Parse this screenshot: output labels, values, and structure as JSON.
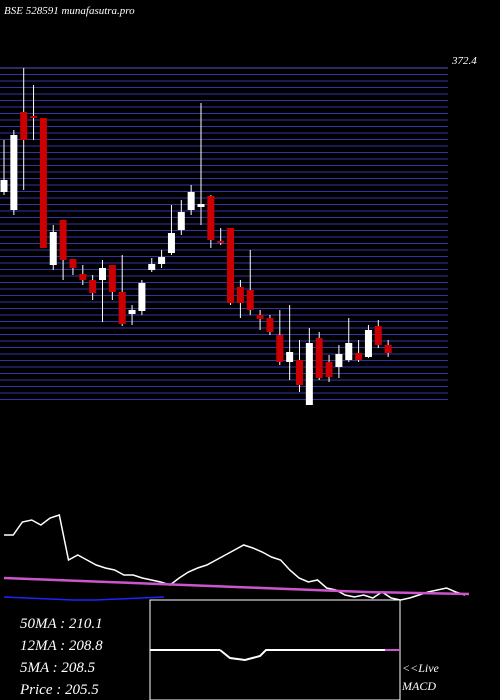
{
  "chart_data": {
    "type": "candlestick",
    "title": "BSE 528591 munafasutra.pro",
    "ylim": [
      170.2,
      372.4
    ],
    "yticks": [
      372.4
    ],
    "up_color": "#ffffff",
    "down_color": "#cc0000",
    "open": [
      298.0,
      287.2,
      346.0,
      343.6,
      342.4,
      254.2,
      281.2,
      257.8,
      248.8,
      245.2,
      245.2,
      254.2,
      238.0,
      224.8,
      226.6,
      251.2,
      254.8,
      261.4,
      275.2,
      287.2,
      289.0,
      295.6,
      268.6,
      276.4,
      241.0,
      239.2,
      224.2,
      222.4,
      212.2,
      196.0,
      197.2,
      170.2,
      210.4,
      196.0,
      193.0,
      197.2,
      201.4,
      199.0,
      217.6,
      206.2
    ],
    "high": [
      329.2,
      335.2,
      372.4,
      362.2,
      342.4,
      278.2,
      281.2,
      257.8,
      254.2,
      248.2,
      257.2,
      254.2,
      260.2,
      230.2,
      245.2,
      258.4,
      263.2,
      290.2,
      293.2,
      302.2,
      351.4,
      296.2,
      276.4,
      276.4,
      245.2,
      263.2,
      227.2,
      224.2,
      227.2,
      230.2,
      209.2,
      216.4,
      214.0,
      200.2,
      206.2,
      222.4,
      209.2,
      218.2,
      221.2,
      209.2
    ],
    "low": [
      296.2,
      284.2,
      299.2,
      329.2,
      264.4,
      251.2,
      245.2,
      248.2,
      242.2,
      233.2,
      220.0,
      233.2,
      217.6,
      218.2,
      224.2,
      250.0,
      252.4,
      260.2,
      272.2,
      284.2,
      278.2,
      264.4,
      266.2,
      230.2,
      222.4,
      224.2,
      215.2,
      212.2,
      194.2,
      185.2,
      178.0,
      170.2,
      185.2,
      184.0,
      186.4,
      196.0,
      196.0,
      198.4,
      204.4,
      199.0
    ],
    "close": [
      305.2,
      332.2,
      329.2,
      342.4,
      264.4,
      274.0,
      257.2,
      252.4,
      245.2,
      237.4,
      252.4,
      238.0,
      218.8,
      227.2,
      243.4,
      254.8,
      259.0,
      273.4,
      286.0,
      298.0,
      290.8,
      269.2,
      267.4,
      231.4,
      231.4,
      227.2,
      221.8,
      214.0,
      196.0,
      202.0,
      182.2,
      207.4,
      186.4,
      187.0,
      200.8,
      207.4,
      197.2,
      215.2,
      206.2,
      201.4
    ],
    "indicator": {
      "ylim": [
        0,
        90
      ],
      "series": [
        {
          "color": "#ffffff",
          "values": [
            65,
            65,
            78,
            80,
            75,
            82,
            85,
            40,
            45,
            40,
            35,
            32,
            30,
            25,
            25,
            22,
            20,
            18,
            15,
            22,
            28,
            32,
            35,
            40,
            45,
            50,
            55,
            52,
            48,
            43,
            40,
            30,
            22,
            18,
            20,
            12,
            10,
            5,
            3,
            5,
            2,
            8,
            2,
            0,
            2,
            5,
            8,
            10,
            12,
            8,
            5
          ]
        },
        {
          "color": "#cc55cc",
          "values": [
            22,
            20,
            18,
            16,
            14,
            12,
            10,
            8,
            7,
            6
          ]
        },
        {
          "color": "#2222ff",
          "values": [
            3,
            2,
            1,
            0,
            0,
            1,
            2,
            3
          ]
        }
      ]
    },
    "labels": [
      "50MA : 210.1",
      "12MA : 208.8",
      "5MA : 208.5",
      "Price   : 205.5"
    ],
    "live": "<<Live",
    "macd": "MACD"
  }
}
